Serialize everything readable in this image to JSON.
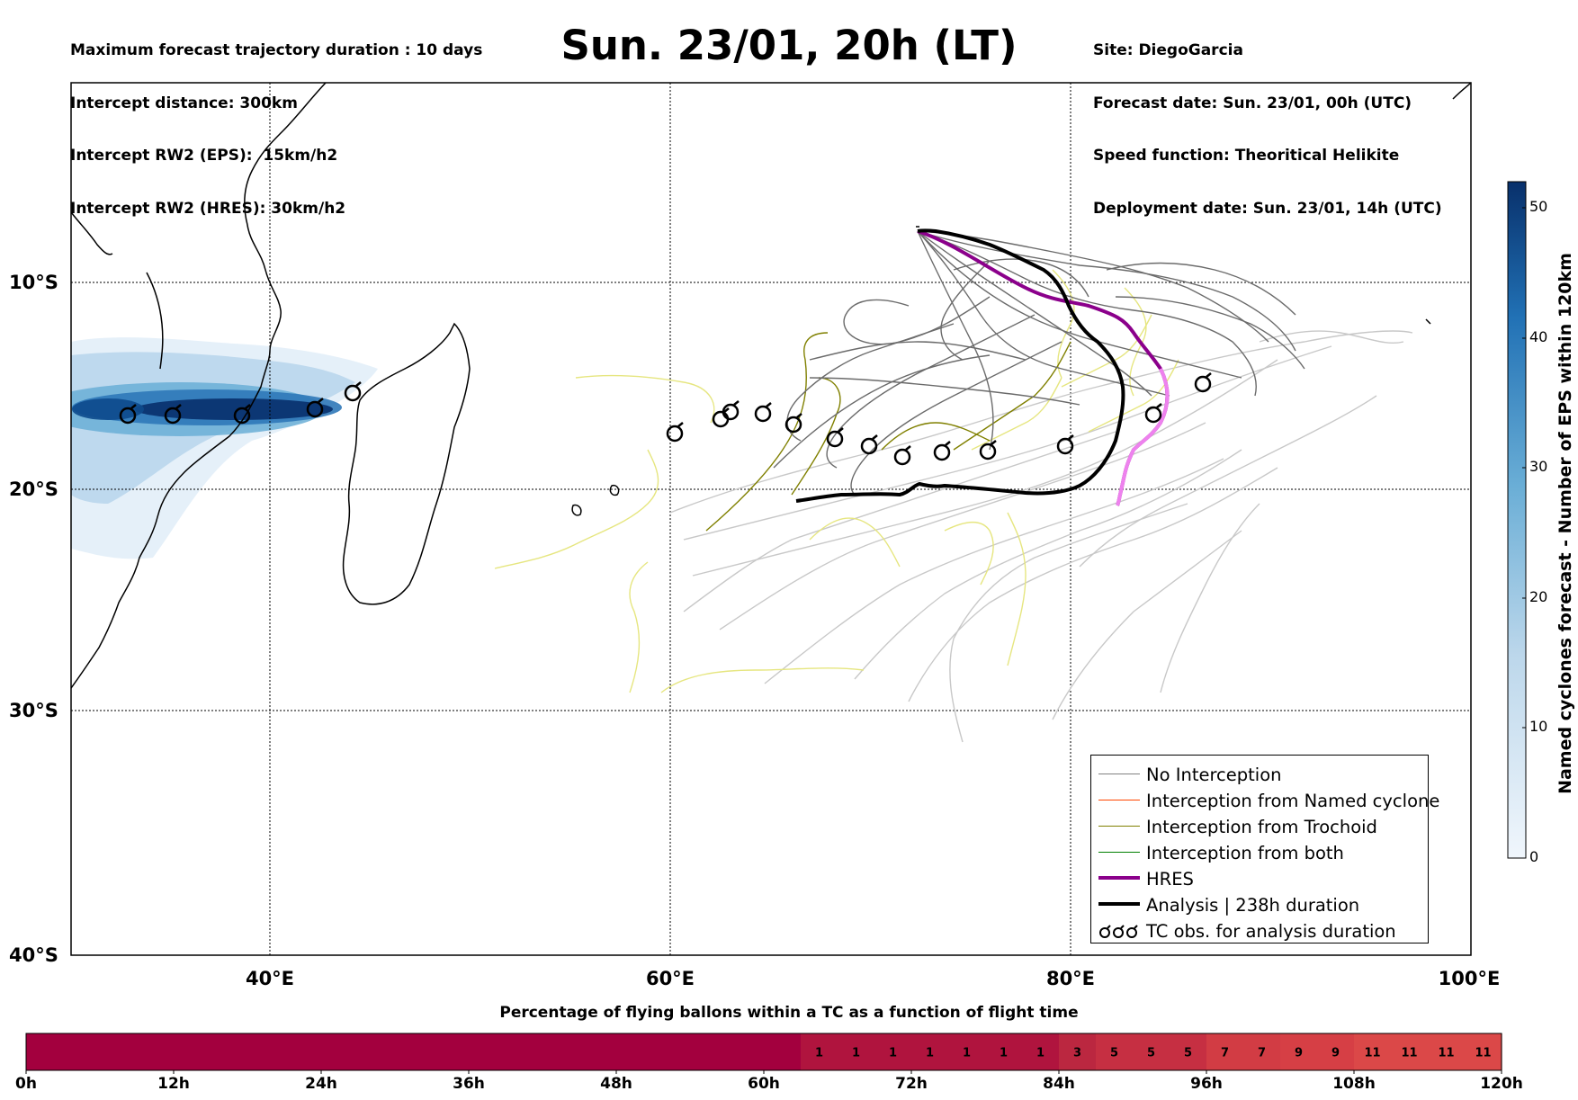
{
  "header": {
    "left_lines": [
      "Maximum forecast trajectory duration : 10 days",
      "Intercept distance: 300km",
      "Intercept RW2 (EPS):  15km/h2",
      "Intercept RW2 (HRES): 30km/h2"
    ],
    "title": "Sun. 23/01, 20h (LT)",
    "right_lines": [
      "Site: DiegoGarcia",
      "Forecast date: Sun. 23/01, 00h (UTC)",
      "Speed function: Theoritical Helikite",
      "Deployment date: Sun. 23/01, 14h (UTC)"
    ]
  },
  "map": {
    "lat_labels": [
      "10°S",
      "20°S",
      "30°S",
      "40°S"
    ],
    "lon_labels": [
      "40°E",
      "60°E",
      "80°E",
      "100°E"
    ],
    "extent": {
      "lon": [
        30,
        100
      ],
      "lat": [
        -40,
        1
      ]
    }
  },
  "legend": {
    "items": [
      {
        "label": "No Interception",
        "color": "#808080",
        "width": 1
      },
      {
        "label": "Interception from Named cyclone",
        "color": "#ff4500",
        "width": 1
      },
      {
        "label": "Interception from Trochoid",
        "color": "#808000",
        "width": 1
      },
      {
        "label": "Interception from both",
        "color": "#008000",
        "width": 1
      },
      {
        "label": "HRES",
        "color": "#8b008b",
        "width": 4
      },
      {
        "label": "Analysis | 238h duration",
        "color": "#000000",
        "width": 4
      },
      {
        "label": "TC obs. for analysis duration",
        "icon": "cyclone-icon"
      }
    ]
  },
  "colorbar": {
    "title": "Named cyclones forecast - Number of EPS within 120km",
    "ticks": [
      "0",
      "10",
      "20",
      "30",
      "40",
      "50"
    ],
    "range": [
      0,
      52
    ],
    "colors": [
      "#f0f6fc",
      "#6aaed6",
      "#08306b"
    ]
  },
  "percentage_bar": {
    "title": "Percentage of flying ballons within a TC as a function of flight time",
    "tick_labels": [
      "0h",
      "12h",
      "24h",
      "36h",
      "48h",
      "60h",
      "72h",
      "84h",
      "96h",
      "108h",
      "120h"
    ],
    "cells": [
      "",
      "",
      "",
      "",
      "",
      "",
      "",
      "",
      "",
      "",
      "",
      "",
      "",
      "",
      "",
      "",
      "",
      "",
      "",
      "",
      "",
      "1",
      "1",
      "1",
      "1",
      "1",
      "1",
      "1",
      "3",
      "5",
      "5",
      "5",
      "7",
      "7",
      "9",
      "9",
      "11",
      "11",
      "11",
      "11"
    ],
    "colors": {
      "base": "#a3003e",
      "1": "#b0143e",
      "3": "#bb2740",
      "5": "#c62f42",
      "7": "#d23c44",
      "9": "#d63f45",
      "11": "#db4848"
    }
  }
}
